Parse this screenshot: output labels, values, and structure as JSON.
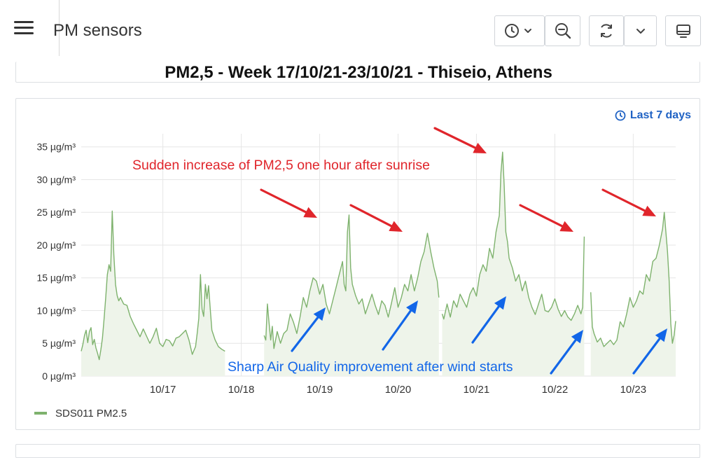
{
  "app": {
    "title": "PM sensors"
  },
  "toolbar": {
    "time_picker_icon": "clock-icon",
    "zoom_out_icon": "zoom-out-icon",
    "refresh_icon": "refresh-icon",
    "dropdown_icon": "chevron-down-icon",
    "tv_mode_icon": "monitor-icon"
  },
  "title_panel": {
    "text": "PM2,5 - Week 17/10/21-23/10/21 - Thiseio, Athens"
  },
  "chart_panel": {
    "time_badge": "Last 7 days"
  },
  "colors": {
    "series": "#7eb26d",
    "fill": "#eef4ea",
    "annotation_red": "#e0252b",
    "annotation_blue": "#1266e8",
    "accent": "#1f62c4"
  },
  "chart_data": {
    "type": "line",
    "title": "",
    "xlabel": "",
    "ylabel": "",
    "x_range": [
      "10/16 12:00",
      "10/23 12:00"
    ],
    "x_tick_labels": [
      "10/17",
      "10/18",
      "10/19",
      "10/20",
      "10/21",
      "10/22",
      "10/23"
    ],
    "y_tick_labels": [
      "0 µg/m³",
      "5 µg/m³",
      "10 µg/m³",
      "15 µg/m³",
      "20 µg/m³",
      "25 µg/m³",
      "30 µg/m³",
      "35 µg/m³"
    ],
    "ylim": [
      0,
      37
    ],
    "grid": true,
    "legend": "bottom-left",
    "series": [
      {
        "name": "SDS011 PM2.5",
        "segments": [
          [
            [
              -13.0,
              3.8
            ],
            [
              -12.5,
              4.8
            ],
            [
              -12,
              6.2
            ],
            [
              -11.5,
              7.0
            ],
            [
              -11,
              5.1
            ],
            [
              -10.5,
              6.8
            ],
            [
              -10,
              7.4
            ],
            [
              -9.5,
              4.8
            ],
            [
              -9,
              5.6
            ],
            [
              -8.5,
              4.3
            ],
            [
              -8,
              3.5
            ],
            [
              -7.5,
              2.5
            ],
            [
              -7,
              4.0
            ],
            [
              -6.5,
              5.8
            ],
            [
              -6,
              8.8
            ],
            [
              -5.5,
              12.0
            ],
            [
              -5,
              15.5
            ],
            [
              -4.5,
              17.0
            ],
            [
              -4,
              16.0
            ],
            [
              -3.5,
              25.2
            ],
            [
              -3,
              18.5
            ],
            [
              -2.5,
              14.0
            ],
            [
              -2,
              12.3
            ],
            [
              -1.5,
              11.5
            ],
            [
              -1,
              12.0
            ],
            [
              0,
              11.0
            ],
            [
              1,
              10.8
            ],
            [
              2,
              9.1
            ],
            [
              3,
              8.0
            ],
            [
              4,
              7.0
            ],
            [
              5,
              6.0
            ],
            [
              6,
              7.2
            ],
            [
              7,
              6.1
            ],
            [
              8,
              5.0
            ],
            [
              9,
              6.0
            ],
            [
              10,
              7.3
            ],
            [
              11,
              5.0
            ],
            [
              12,
              4.5
            ],
            [
              13,
              5.6
            ],
            [
              14,
              5.4
            ],
            [
              15,
              4.6
            ],
            [
              16,
              5.8
            ],
            [
              17,
              6.0
            ],
            [
              18,
              6.5
            ],
            [
              19,
              7.0
            ],
            [
              20,
              5.5
            ],
            [
              21,
              3.3
            ],
            [
              22,
              4.5
            ],
            [
              22.5,
              6.5
            ],
            [
              23,
              8.8
            ],
            [
              23.5,
              15.5
            ],
            [
              24,
              10.2
            ],
            [
              24.5,
              9.1
            ],
            [
              25,
              14.0
            ],
            [
              25.5,
              11.8
            ],
            [
              26,
              13.8
            ],
            [
              26.5,
              10.2
            ],
            [
              27,
              7.0
            ],
            [
              28,
              5.5
            ],
            [
              29,
              4.5
            ],
            [
              30,
              4.1
            ],
            [
              31,
              3.8
            ]
          ],
          [
            [
              43.0,
              6.2
            ],
            [
              43.5,
              5.5
            ],
            [
              44,
              11.0
            ],
            [
              44.5,
              8.2
            ],
            [
              45,
              5.5
            ],
            [
              45.5,
              7.6
            ],
            [
              46,
              4.2
            ],
            [
              47,
              6.8
            ],
            [
              48,
              5.0
            ],
            [
              49,
              6.5
            ],
            [
              50,
              7.0
            ],
            [
              51,
              9.5
            ],
            [
              52,
              8.2
            ],
            [
              53,
              6.5
            ],
            [
              54,
              9.0
            ],
            [
              55,
              12.0
            ],
            [
              56,
              10.5
            ],
            [
              57,
              13.0
            ],
            [
              58,
              15.0
            ],
            [
              59,
              14.5
            ],
            [
              60,
              12.5
            ],
            [
              61,
              14.0
            ],
            [
              62,
              11.0
            ],
            [
              63,
              9.5
            ],
            [
              64,
              11.5
            ],
            [
              65,
              13.5
            ],
            [
              66,
              15.5
            ],
            [
              67,
              17.5
            ],
            [
              67.5,
              14.0
            ],
            [
              68,
              13.0
            ],
            [
              68.5,
              22.0
            ],
            [
              69,
              24.6
            ],
            [
              69.5,
              16.5
            ],
            [
              70,
              14.0
            ],
            [
              71,
              12.3
            ],
            [
              72,
              11.0
            ],
            [
              73,
              11.8
            ],
            [
              74,
              9.5
            ],
            [
              75,
              11.0
            ],
            [
              76,
              12.5
            ],
            [
              77,
              10.8
            ],
            [
              78,
              9.4
            ],
            [
              79,
              11.5
            ],
            [
              80,
              10.8
            ],
            [
              81,
              9.0
            ],
            [
              82,
              11.2
            ],
            [
              83,
              13.5
            ],
            [
              84,
              10.5
            ],
            [
              85,
              12.0
            ],
            [
              86,
              14.0
            ],
            [
              87,
              13.0
            ],
            [
              88,
              15.5
            ],
            [
              89,
              13.0
            ],
            [
              90,
              15.0
            ],
            [
              91,
              17.5
            ],
            [
              92,
              19.0
            ],
            [
              93,
              21.8
            ],
            [
              94,
              19.0
            ],
            [
              95,
              16.5
            ],
            [
              96,
              14.5
            ],
            [
              96.5,
              12.0
            ]
          ],
          [
            [
              97.5,
              9.5
            ],
            [
              98,
              8.7
            ],
            [
              99,
              11.0
            ],
            [
              100,
              9.0
            ],
            [
              101,
              11.5
            ],
            [
              102,
              10.5
            ],
            [
              103,
              12.5
            ],
            [
              104,
              11.5
            ],
            [
              105,
              10.5
            ],
            [
              106,
              12.5
            ],
            [
              107,
              13.5
            ],
            [
              108,
              12.2
            ],
            [
              109,
              15.5
            ],
            [
              110,
              17.0
            ],
            [
              111,
              16.0
            ],
            [
              112,
              19.5
            ],
            [
              113,
              18.0
            ],
            [
              114,
              22.0
            ],
            [
              115,
              24.5
            ],
            [
              115.5,
              31.0
            ],
            [
              116,
              34.2
            ],
            [
              116.5,
              29.0
            ],
            [
              117,
              22.0
            ],
            [
              117.5,
              20.5
            ],
            [
              118,
              18.0
            ],
            [
              119,
              16.5
            ],
            [
              120,
              14.5
            ],
            [
              121,
              15.5
            ],
            [
              122,
              13.0
            ],
            [
              123,
              14.5
            ],
            [
              124,
              12.0
            ],
            [
              125,
              10.5
            ],
            [
              126,
              9.4
            ],
            [
              127,
              11.0
            ],
            [
              128,
              12.5
            ],
            [
              129,
              10.0
            ],
            [
              130,
              9.8
            ],
            [
              131,
              10.5
            ],
            [
              132,
              11.8
            ],
            [
              133,
              10.2
            ],
            [
              134,
              9.1
            ],
            [
              135,
              10.0
            ],
            [
              136,
              9.0
            ],
            [
              137,
              8.5
            ],
            [
              138,
              9.5
            ],
            [
              139,
              10.8
            ],
            [
              140,
              9.5
            ],
            [
              140.5,
              10.5
            ],
            [
              141,
              21.3
            ]
          ],
          [
            [
              143.0,
              12.8
            ],
            [
              143.5,
              7.5
            ],
            [
              144,
              6.5
            ],
            [
              145,
              5.2
            ],
            [
              146,
              5.8
            ],
            [
              147,
              4.5
            ],
            [
              148,
              5.0
            ],
            [
              149,
              5.5
            ],
            [
              150,
              4.8
            ],
            [
              151,
              5.5
            ],
            [
              152,
              8.3
            ],
            [
              153,
              7.5
            ],
            [
              154,
              9.5
            ],
            [
              155,
              12.0
            ],
            [
              156,
              10.5
            ],
            [
              157,
              11.5
            ],
            [
              158,
              13.0
            ],
            [
              159,
              12.5
            ],
            [
              160,
              15.5
            ],
            [
              161,
              14.5
            ],
            [
              162,
              17.5
            ],
            [
              163,
              18.0
            ],
            [
              164,
              20.0
            ],
            [
              165,
              22.5
            ],
            [
              165.5,
              25.0
            ],
            [
              166,
              22.0
            ],
            [
              166.5,
              19.0
            ],
            [
              167,
              14.5
            ],
            [
              167.5,
              8.0
            ],
            [
              168,
              5.0
            ],
            [
              168.5,
              6.2
            ],
            [
              169,
              8.4
            ]
          ]
        ]
      }
    ],
    "annotations": [
      {
        "text": "Sudden increase of PM2,5 one hour after sunrise",
        "color": "red"
      },
      {
        "text": "Sharp Air Quality improvement after wind starts",
        "color": "blue"
      }
    ]
  }
}
